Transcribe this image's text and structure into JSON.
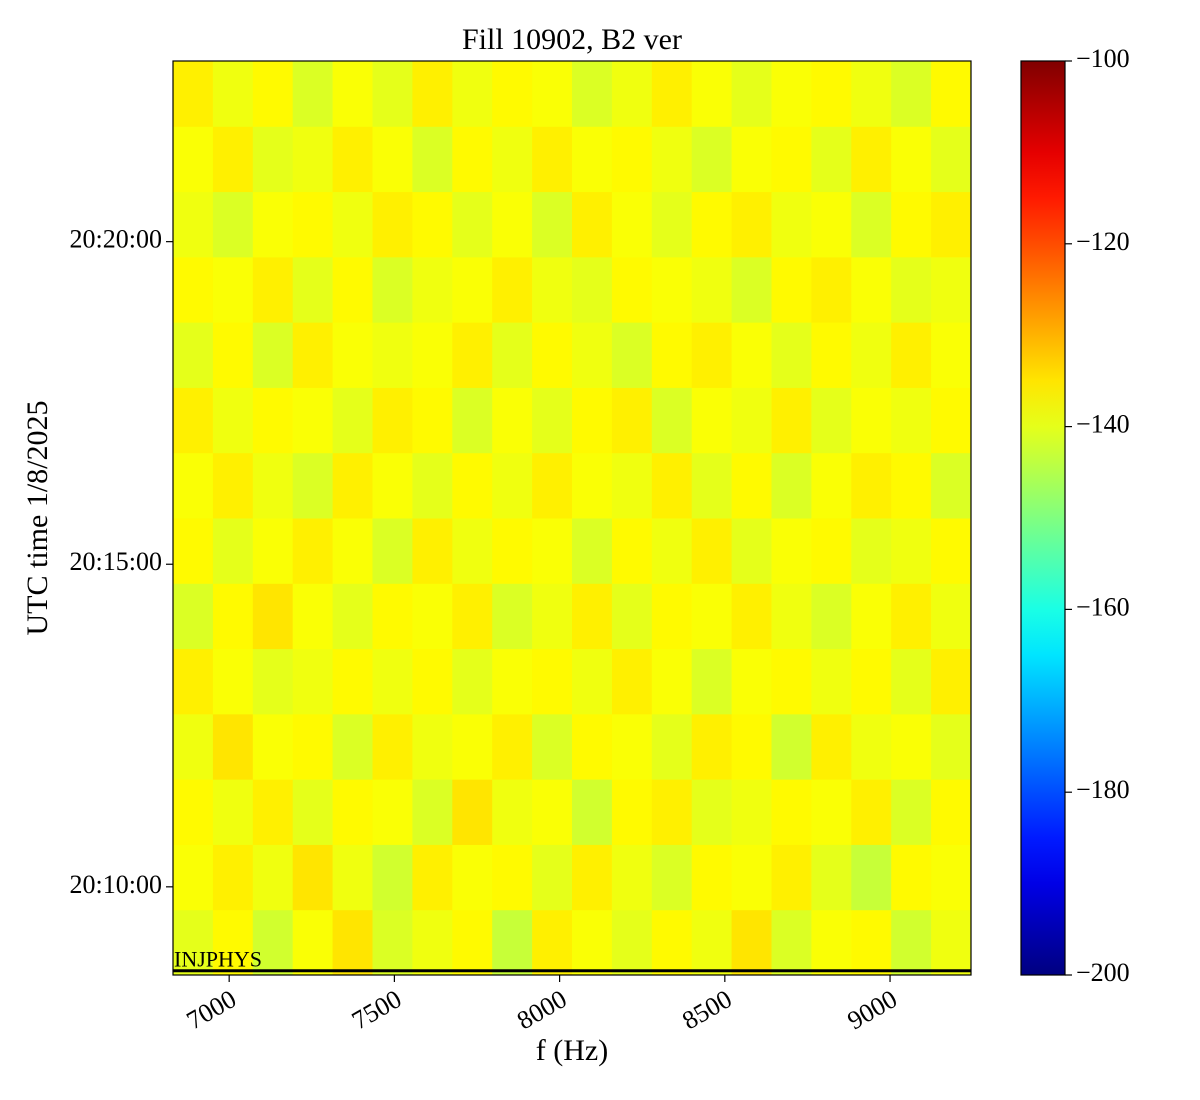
{
  "chart_data": {
    "type": "heatmap",
    "title": "Fill 10902, B2 ver",
    "x_label": "f (Hz)",
    "y_label": "UTC time 1/8/2025",
    "colormap": "jet",
    "xlim": [
      6830,
      9245
    ],
    "xticks": [
      7000,
      7500,
      8000,
      8500,
      9000
    ],
    "ylim": [
      "20:08:38",
      "20:22:48"
    ],
    "yticks": [
      "20:10:00",
      "20:15:00",
      "20:20:00"
    ],
    "zlim": [
      -200,
      -100
    ],
    "zticks": [
      {
        "value": -200,
        "label": "−200"
      },
      {
        "value": -180,
        "label": "−180"
      },
      {
        "value": -160,
        "label": "−160"
      },
      {
        "value": -140,
        "label": "−140"
      },
      {
        "value": -120,
        "label": "−120"
      },
      {
        "value": -100,
        "label": "−100"
      }
    ],
    "annotation": {
      "text": "INJPHYS",
      "time": "20:08:42",
      "color": "#000000"
    },
    "z": [
      [
        -140,
        -137,
        -142,
        -138,
        -135,
        -141,
        -139,
        -137,
        -143,
        -136,
        -138,
        -140,
        -137,
        -139,
        -135,
        -141,
        -138,
        -137,
        -142,
        -139
      ],
      [
        -138,
        -136,
        -139,
        -135,
        -139,
        -142,
        -136,
        -138,
        -137,
        -140,
        -136,
        -139,
        -141,
        -137,
        -138,
        -136,
        -140,
        -143,
        -137,
        -138
      ],
      [
        -137,
        -139,
        -136,
        -140,
        -137,
        -138,
        -141,
        -135,
        -139,
        -138,
        -142,
        -137,
        -136,
        -140,
        -139,
        -137,
        -138,
        -136,
        -141,
        -137
      ],
      [
        -139,
        -135,
        -138,
        -137,
        -141,
        -136,
        -139,
        -138,
        -136,
        -141,
        -137,
        -138,
        -140,
        -136,
        -137,
        -142,
        -136,
        -139,
        -138,
        -140
      ],
      [
        -136,
        -138,
        -140,
        -139,
        -137,
        -139,
        -137,
        -140,
        -138,
        -137,
        -139,
        -136,
        -138,
        -141,
        -138,
        -137,
        -139,
        -137,
        -140,
        -136
      ],
      [
        -141,
        -137,
        -135,
        -138,
        -140,
        -137,
        -138,
        -136,
        -141,
        -139,
        -136,
        -140,
        -137,
        -138,
        -136,
        -139,
        -141,
        -138,
        -136,
        -139
      ],
      [
        -137,
        -140,
        -138,
        -136,
        -138,
        -141,
        -136,
        -139,
        -137,
        -138,
        -141,
        -137,
        -139,
        -136,
        -140,
        -138,
        -137,
        -140,
        -139,
        -137
      ],
      [
        -138,
        -136,
        -139,
        -141,
        -136,
        -138,
        -140,
        -137,
        -139,
        -136,
        -138,
        -139,
        -136,
        -140,
        -137,
        -141,
        -138,
        -136,
        -137,
        -141
      ],
      [
        -136,
        -139,
        -137,
        -138,
        -140,
        -136,
        -137,
        -141,
        -138,
        -140,
        -137,
        -136,
        -141,
        -138,
        -139,
        -136,
        -140,
        -138,
        -139,
        -137
      ],
      [
        -140,
        -137,
        -141,
        -136,
        -138,
        -139,
        -138,
        -136,
        -140,
        -137,
        -139,
        -141,
        -137,
        -136,
        -138,
        -140,
        -137,
        -139,
        -136,
        -138
      ],
      [
        -137,
        -138,
        -136,
        -140,
        -137,
        -141,
        -139,
        -138,
        -136,
        -139,
        -140,
        -137,
        -138,
        -139,
        -141,
        -137,
        -136,
        -138,
        -140,
        -139
      ],
      [
        -139,
        -141,
        -138,
        -137,
        -139,
        -136,
        -137,
        -140,
        -138,
        -141,
        -136,
        -138,
        -140,
        -137,
        -136,
        -139,
        -138,
        -141,
        -137,
        -136
      ],
      [
        -138,
        -136,
        -140,
        -139,
        -136,
        -138,
        -141,
        -137,
        -139,
        -136,
        -138,
        -137,
        -139,
        -141,
        -138,
        -137,
        -140,
        -136,
        -138,
        -140
      ],
      [
        -136,
        -139,
        -137,
        -141,
        -138,
        -140,
        -136,
        -139,
        -137,
        -138,
        -141,
        -139,
        -136,
        -138,
        -140,
        -138,
        -137,
        -139,
        -141,
        -137
      ]
    ]
  }
}
